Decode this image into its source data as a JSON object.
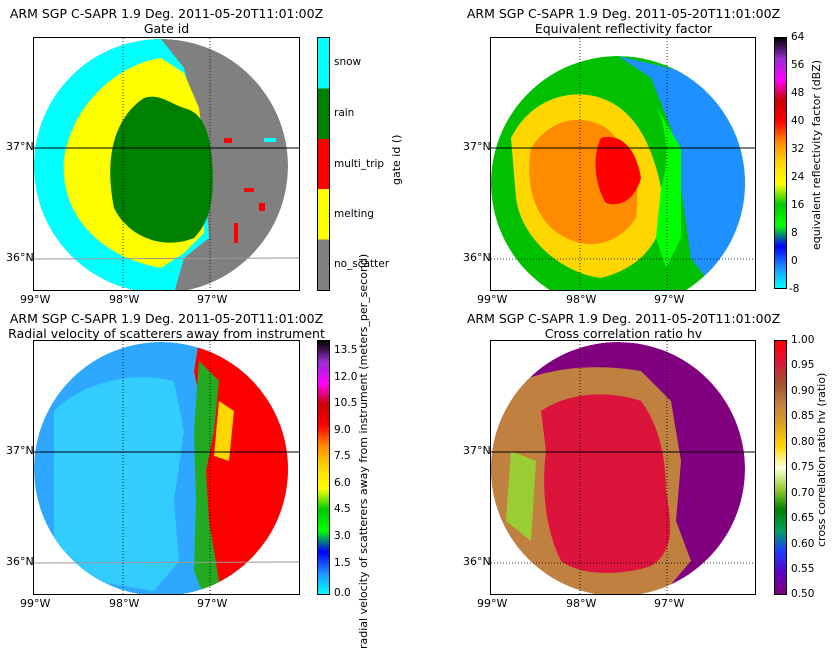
{
  "panels": [
    {
      "title1": "ARM SGP C-SAPR 1.9 Deg. 2011-05-20T11:01:00Z",
      "title2": "Gate id",
      "lat_ticks": [
        "37°N",
        "36°N"
      ],
      "lon_ticks": [
        "99°W",
        "98°W",
        "97°W"
      ],
      "colorbar": {
        "label": "gate id ()",
        "type": "categorical",
        "categories": [
          "snow",
          "rain",
          "multi_trip",
          "melting",
          "no_scatter"
        ],
        "colors": [
          "#00ffff",
          "#008000",
          "#ff0000",
          "#ffff00",
          "#808080"
        ]
      }
    },
    {
      "title1": "ARM SGP C-SAPR 1.9 Deg. 2011-05-20T11:01:00Z",
      "title2": "Equivalent reflectivity factor",
      "lat_ticks": [
        "37°N",
        "36°N"
      ],
      "lon_ticks": [
        "99°W",
        "98°W",
        "97°W"
      ],
      "colorbar": {
        "label": "equivalent reflectivity factor (dBZ)",
        "type": "continuous",
        "ticks": [
          "64",
          "56",
          "48",
          "40",
          "32",
          "24",
          "16",
          "8",
          "0",
          "-8"
        ],
        "colors": [
          "#000000",
          "#9a2dd0",
          "#ff00ff",
          "#c80000",
          "#ff0000",
          "#ff8c00",
          "#ffd700",
          "#ffff00",
          "#00c800",
          "#00ff00",
          "#0000ff",
          "#1e90ff",
          "#00ffff"
        ]
      }
    },
    {
      "title1": "ARM SGP C-SAPR 1.9 Deg. 2011-05-20T11:01:00Z",
      "title2": "Radial velocity of scatterers away from instrument",
      "lat_ticks": [
        "37°N",
        "36°N"
      ],
      "lon_ticks": [
        "99°W",
        "98°W",
        "97°W"
      ],
      "colorbar": {
        "label": "radial velocity of scatterers away from instrument (meters_per_second)",
        "type": "continuous",
        "ticks": [
          "13.5",
          "12.0",
          "10.5",
          "9.0",
          "7.5",
          "6.0",
          "4.5",
          "3.0",
          "1.5",
          "0.0"
        ],
        "colors": [
          "#000000",
          "#9a2dd0",
          "#ff00ff",
          "#c80000",
          "#ff0000",
          "#ff8c00",
          "#ffd700",
          "#ffff00",
          "#00c800",
          "#00ff00",
          "#0000ff",
          "#1e90ff",
          "#00ffff"
        ]
      }
    },
    {
      "title1": "ARM SGP C-SAPR 1.9 Deg. 2011-05-20T11:01:00Z",
      "title2": "Cross correlation ratio hv",
      "lat_ticks": [
        "37°N",
        "36°N"
      ],
      "lon_ticks": [
        "99°W",
        "98°W",
        "97°W"
      ],
      "colorbar": {
        "label": "cross correlation ratio hv (ratio)",
        "type": "continuous",
        "ticks": [
          "1.00",
          "0.95",
          "0.90",
          "0.85",
          "0.80",
          "0.75",
          "0.70",
          "0.65",
          "0.60",
          "0.55",
          "0.50"
        ],
        "colors": [
          "#ff0000",
          "#dc143c",
          "#a0522d",
          "#c08040",
          "#daa520",
          "#ffd700",
          "#ffffe0",
          "#9acd32",
          "#008000",
          "#00a060",
          "#1e3cff",
          "#6000c0",
          "#800080"
        ]
      }
    }
  ],
  "chart_data": [
    {
      "type": "heatmap",
      "title": "ARM SGP C-SAPR 1.9 Deg. 2011-05-20T11:01:00Z\nGate id",
      "variable": "gate id",
      "units": "()",
      "categories": [
        "no_scatter",
        "melting",
        "multi_trip",
        "rain",
        "snow"
      ],
      "lat_ticks": [
        36,
        37
      ],
      "lon_ticks": [
        -99,
        -98,
        -97
      ],
      "xlim": [
        -99.0,
        -96.7
      ],
      "ylim": [
        35.7,
        38.0
      ]
    },
    {
      "type": "heatmap",
      "title": "ARM SGP C-SAPR 1.9 Deg. 2011-05-20T11:01:00Z\nEquivalent reflectivity factor",
      "variable": "equivalent reflectivity factor",
      "units": "dBZ",
      "vmin": -8,
      "vmax": 64,
      "lat_ticks": [
        36,
        37
      ],
      "lon_ticks": [
        -99,
        -98,
        -97
      ]
    },
    {
      "type": "heatmap",
      "title": "ARM SGP C-SAPR 1.9 Deg. 2011-05-20T11:01:00Z\nRadial velocity of scatterers away from instrument",
      "variable": "radial velocity of scatterers away from instrument",
      "units": "meters_per_second",
      "vmin": 0.0,
      "vmax": 13.5,
      "lat_ticks": [
        36,
        37
      ],
      "lon_ticks": [
        -99,
        -98,
        -97
      ]
    },
    {
      "type": "heatmap",
      "title": "ARM SGP C-SAPR 1.9 Deg. 2011-05-20T11:01:00Z\nCross correlation ratio hv",
      "variable": "cross correlation ratio hv",
      "units": "ratio",
      "vmin": 0.5,
      "vmax": 1.0,
      "lat_ticks": [
        36,
        37
      ],
      "lon_ticks": [
        -99,
        -98,
        -97
      ]
    }
  ]
}
